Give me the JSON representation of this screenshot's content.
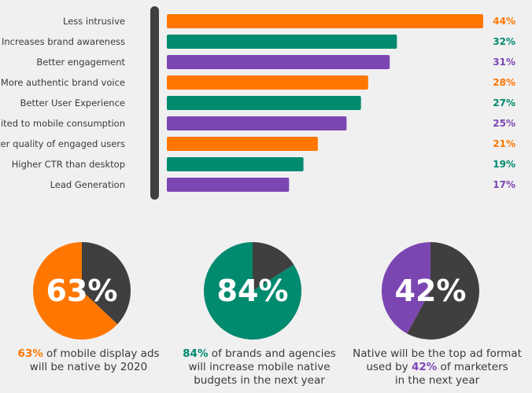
{
  "colors": {
    "orange": "#ff7700",
    "green": "#008a6e",
    "purple": "#7c46b2",
    "dark": "#3f3f3f",
    "axis": "#3f3f3f",
    "label": "#3a3a3a"
  },
  "chart_data": [
    {
      "type": "bar",
      "orientation": "horizontal",
      "categories": [
        "Less intrusive",
        "Increases brand awareness",
        "Better engagement",
        "More authentic brand voice",
        "Better User Experience",
        "Suited to mobile consumption",
        "Better quality of engaged users",
        "Higher CTR than desktop",
        "Lead Generation"
      ],
      "values": [
        44,
        32,
        31,
        28,
        27,
        25,
        21,
        19,
        17
      ],
      "value_labels": [
        "44%",
        "32%",
        "31%",
        "28%",
        "27%",
        "25%",
        "21%",
        "19%",
        "17%"
      ],
      "bar_colors": [
        "orange",
        "green",
        "purple",
        "orange",
        "green",
        "purple",
        "orange",
        "green",
        "purple"
      ],
      "xlim": [
        0,
        44
      ],
      "grid": false
    },
    {
      "type": "pie",
      "label": "63%",
      "values": [
        63,
        37
      ],
      "colors": [
        "orange",
        "dark"
      ],
      "caption_highlight": "63%",
      "caption_lines": [
        " of mobile display ads",
        "will be native by 2020"
      ]
    },
    {
      "type": "pie",
      "label": "84%",
      "values": [
        84,
        16
      ],
      "colors": [
        "green",
        "dark"
      ],
      "caption_highlight": "84%",
      "caption_lines": [
        " of brands and agencies",
        "will increase mobile native",
        "budgets in the next year"
      ]
    },
    {
      "type": "pie",
      "label": "42%",
      "values": [
        42,
        58
      ],
      "colors": [
        "purple",
        "dark"
      ],
      "caption_pre": "Native will be the top ad format",
      "caption_mid_pre": "used by ",
      "caption_highlight": "42%",
      "caption_mid_post": " of marketers",
      "caption_post": "in the next year"
    }
  ]
}
